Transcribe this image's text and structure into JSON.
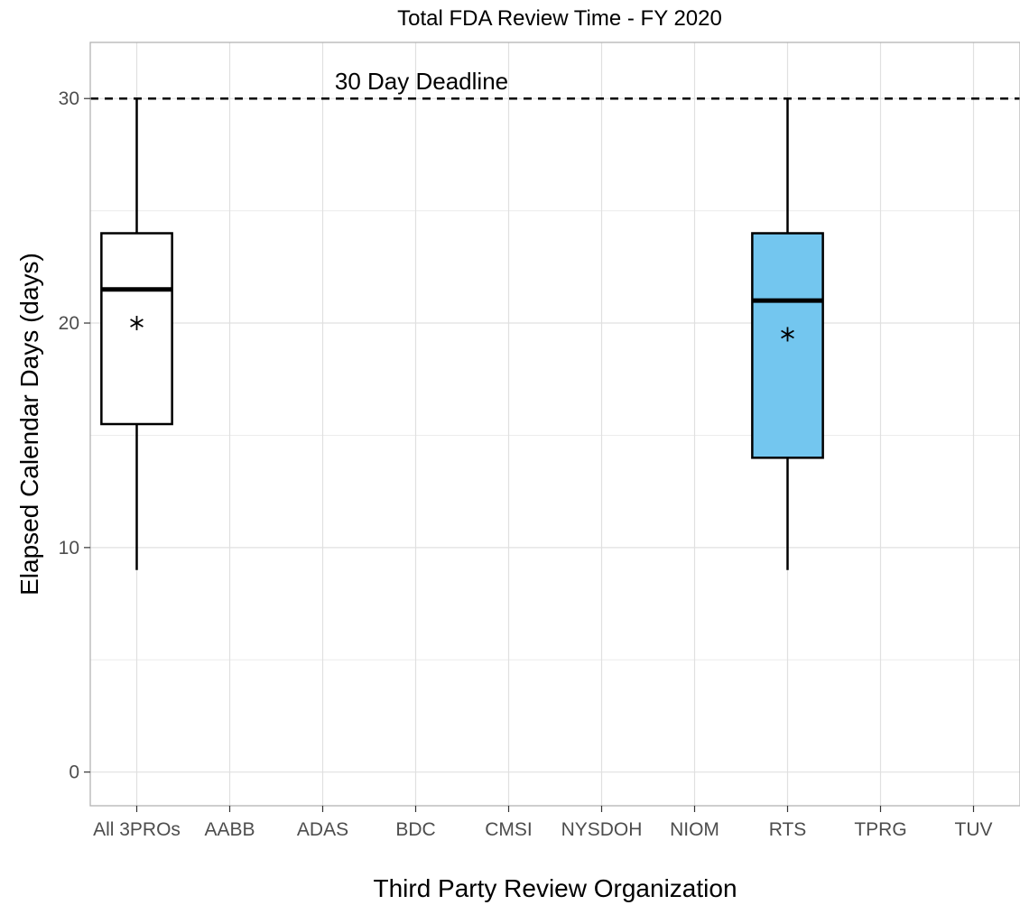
{
  "chart_data": {
    "type": "boxplot",
    "title": "Total FDA Review Time - FY 2020",
    "xlabel": "Third Party Review Organization",
    "ylabel": "Elapsed Calendar Days (days)",
    "categories": [
      "All 3PROs",
      "AABB",
      "ADAS",
      "BDC",
      "CMSI",
      "NYSDOH",
      "NIOM",
      "RTS",
      "TPRG",
      "TUV"
    ],
    "ylim": [
      -1.5,
      32.5
    ],
    "yticks": [
      0,
      10,
      20,
      30
    ],
    "grid": true,
    "reference_line": {
      "y": 30,
      "label": "30 Day Deadline",
      "style": "dashed"
    },
    "boxes": [
      {
        "category": "All 3PROs",
        "min": 9,
        "q1": 15.5,
        "median": 21.5,
        "q3": 24,
        "max": 30,
        "mean": 20,
        "fill": "#ffffff"
      },
      {
        "category": "RTS",
        "min": 9,
        "q1": 14,
        "median": 21,
        "q3": 24,
        "max": 30,
        "mean": 19.5,
        "fill": "#73c6ef"
      }
    ],
    "colors": {
      "rts_fill": "#73c6ef",
      "grid": "#e0e0e0",
      "panel_border": "#b3b3b3"
    }
  }
}
